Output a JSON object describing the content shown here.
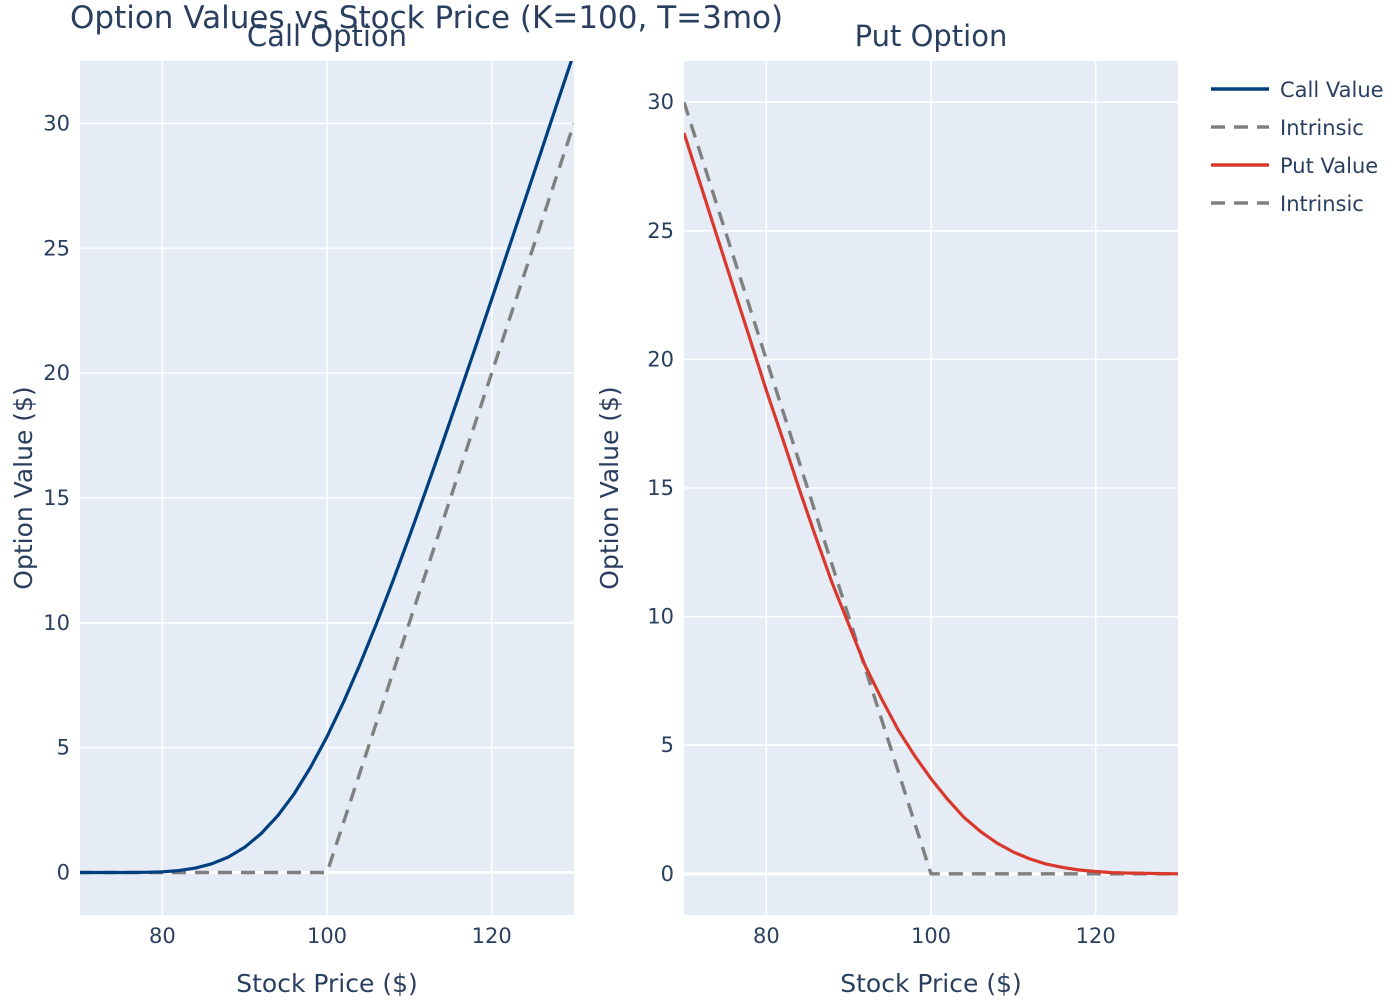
{
  "title": "Option Values vs Stock Price (K=100, T=3mo)",
  "legend": {
    "position": "right",
    "entries": [
      {
        "label": "Call Value",
        "color": "#003f7f",
        "dash": "solid"
      },
      {
        "label": "Intrinsic",
        "color": "#808080",
        "dash": "dash"
      },
      {
        "label": "Put Value",
        "color": "#d9382d",
        "dash": "solid"
      },
      {
        "label": "Intrinsic",
        "color": "#808080",
        "dash": "dash"
      }
    ]
  },
  "chart_data": [
    {
      "type": "line",
      "title": "Call Option",
      "xlabel": "Stock Price ($)",
      "ylabel": "Option Value ($)",
      "xlim": [
        70,
        130
      ],
      "ylim": [
        -1.7,
        32.5
      ],
      "xticks": [
        80,
        100,
        120
      ],
      "yticks": [
        0,
        5,
        10,
        15,
        20,
        25,
        30
      ],
      "grid": true,
      "x": [
        70,
        72,
        74,
        76,
        78,
        80,
        82,
        84,
        86,
        88,
        90,
        92,
        94,
        96,
        98,
        100,
        102,
        104,
        106,
        108,
        110,
        112,
        114,
        116,
        118,
        120,
        122,
        124,
        126,
        128,
        130
      ],
      "series": [
        {
          "name": "Call Value",
          "color": "#003f7f",
          "dash": "solid",
          "values": [
            0.0,
            0.0,
            0.0,
            0.0,
            0.01,
            0.03,
            0.08,
            0.18,
            0.35,
            0.62,
            1.01,
            1.56,
            2.27,
            3.15,
            4.21,
            5.44,
            6.82,
            8.33,
            9.96,
            11.67,
            13.45,
            15.29,
            17.17,
            19.08,
            21.01,
            22.96,
            24.92,
            26.89,
            28.87,
            30.85,
            32.83
          ]
        },
        {
          "name": "Intrinsic",
          "color": "#808080",
          "dash": "dash",
          "values": [
            0,
            0,
            0,
            0,
            0,
            0,
            0,
            0,
            0,
            0,
            0,
            0,
            0,
            0,
            0,
            0,
            2,
            4,
            6,
            8,
            10,
            12,
            14,
            16,
            18,
            20,
            22,
            24,
            26,
            28,
            30
          ]
        }
      ]
    },
    {
      "type": "line",
      "title": "Put Option",
      "xlabel": "Stock Price ($)",
      "ylabel": "Option Value ($)",
      "xlim": [
        70,
        130
      ],
      "ylim": [
        -1.6,
        31.6
      ],
      "xticks": [
        80,
        100,
        120
      ],
      "yticks": [
        0,
        5,
        10,
        15,
        20,
        25,
        30
      ],
      "grid": true,
      "x": [
        70,
        72,
        74,
        76,
        78,
        80,
        82,
        84,
        86,
        88,
        90,
        92,
        94,
        96,
        98,
        100,
        102,
        104,
        106,
        108,
        110,
        112,
        114,
        116,
        118,
        120,
        122,
        124,
        126,
        128,
        130
      ],
      "series": [
        {
          "name": "Put Value",
          "color": "#d9382d",
          "dash": "solid",
          "values": [
            28.8,
            26.8,
            24.8,
            22.8,
            20.8,
            18.8,
            16.9,
            14.95,
            13.1,
            11.3,
            9.7,
            8.1,
            6.8,
            5.6,
            4.6,
            3.7,
            2.9,
            2.2,
            1.65,
            1.2,
            0.85,
            0.58,
            0.38,
            0.25,
            0.15,
            0.09,
            0.05,
            0.03,
            0.02,
            0.01,
            0.0
          ]
        },
        {
          "name": "Intrinsic",
          "color": "#808080",
          "dash": "dash",
          "values": [
            30,
            28,
            26,
            24,
            22,
            20,
            18,
            16,
            14,
            12,
            10,
            8,
            6,
            4,
            2,
            0,
            0,
            0,
            0,
            0,
            0,
            0,
            0,
            0,
            0,
            0,
            0,
            0,
            0,
            0,
            0
          ]
        }
      ]
    }
  ]
}
